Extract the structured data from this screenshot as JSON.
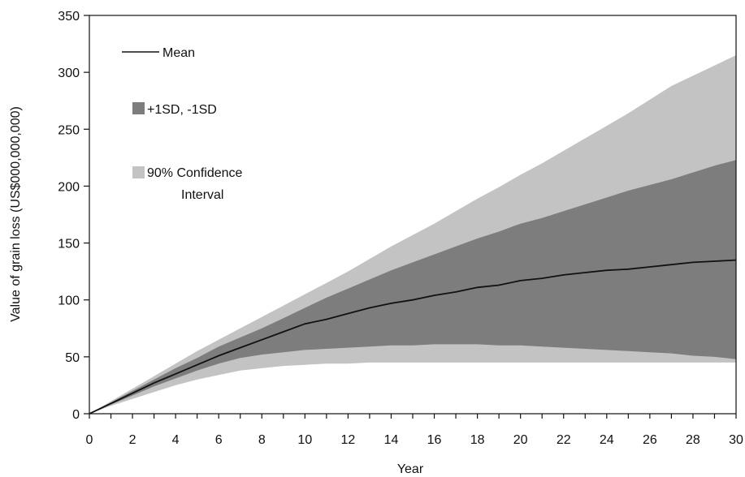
{
  "colors": {
    "ci90": "#c3c3c3",
    "sd": "#7d7d7d",
    "mean": "#111111",
    "axis": "#111111"
  },
  "legend": {
    "mean": "Mean",
    "sd": "+1SD, -1SD",
    "ci_line1": "90% Confidence",
    "ci_line2": "Interval"
  },
  "chart_data": {
    "type": "area",
    "xlabel": "Year",
    "ylabel": "Value of grain loss (US$000,000,000)",
    "xlim": [
      0,
      30
    ],
    "ylim": [
      0,
      350
    ],
    "xticks": [
      0,
      2,
      4,
      6,
      8,
      10,
      12,
      14,
      16,
      18,
      20,
      22,
      24,
      26,
      28,
      30
    ],
    "yticks": [
      0,
      50,
      100,
      150,
      200,
      250,
      300,
      350
    ],
    "grid": false,
    "legend_position": "top-left",
    "x": [
      0,
      1,
      2,
      3,
      4,
      5,
      6,
      7,
      8,
      9,
      10,
      11,
      12,
      13,
      14,
      15,
      16,
      17,
      18,
      19,
      20,
      21,
      22,
      23,
      24,
      25,
      26,
      27,
      28,
      29,
      30
    ],
    "series": [
      {
        "name": "Mean",
        "kind": "line",
        "values": [
          0,
          9,
          18,
          27,
          35,
          43,
          51,
          58,
          65,
          72,
          79,
          83,
          88,
          93,
          97,
          100,
          104,
          107,
          111,
          113,
          117,
          119,
          122,
          124,
          126,
          127,
          129,
          131,
          133,
          134,
          135
        ]
      },
      {
        "name": "+1SD, -1SD",
        "kind": "band",
        "upper": [
          0,
          10,
          20,
          30,
          40,
          49,
          59,
          67,
          75,
          84,
          93,
          102,
          110,
          118,
          126,
          133,
          140,
          147,
          154,
          160,
          167,
          172,
          178,
          184,
          190,
          196,
          201,
          206,
          212,
          218,
          223
        ],
        "lower": [
          0,
          8,
          16,
          24,
          31,
          38,
          44,
          49,
          52,
          54,
          56,
          57,
          58,
          59,
          60,
          60,
          61,
          61,
          61,
          60,
          60,
          59,
          58,
          57,
          56,
          55,
          54,
          53,
          51,
          50,
          48
        ]
      },
      {
        "name": "90% Confidence Interval",
        "kind": "band",
        "upper": [
          0,
          11,
          22,
          33,
          44,
          55,
          65,
          75,
          85,
          95,
          105,
          115,
          125,
          136,
          147,
          157,
          167,
          178,
          189,
          199,
          210,
          220,
          231,
          242,
          253,
          264,
          276,
          288,
          297,
          306,
          315
        ],
        "lower": [
          0,
          7,
          13,
          19,
          25,
          30,
          34,
          38,
          40,
          42,
          43,
          44,
          44,
          45,
          45,
          45,
          45,
          45,
          45,
          45,
          45,
          45,
          45,
          45,
          45,
          45,
          45,
          45,
          45,
          45,
          45
        ]
      }
    ]
  }
}
